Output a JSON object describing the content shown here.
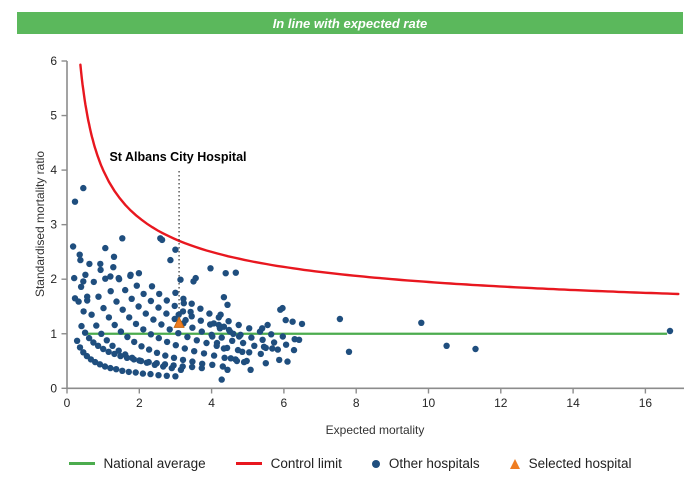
{
  "banner": {
    "text": "In line with expected rate"
  },
  "annotation": {
    "label": "St Albans City Hospital"
  },
  "chart": {
    "y_axis": {
      "label": "Standardised mortality ratio",
      "ticks": [
        0,
        1,
        2,
        3,
        4,
        5,
        6
      ]
    },
    "x_axis": {
      "label": "Expected mortality",
      "ticks": [
        0,
        2,
        4,
        6,
        8,
        10,
        12,
        14,
        16
      ]
    }
  },
  "legend": {
    "items": [
      {
        "swatch": "green-line",
        "label": "National average"
      },
      {
        "swatch": "red-line",
        "label": "Control limit"
      },
      {
        "swatch": "blue-dot",
        "label": "Other hospitals"
      },
      {
        "swatch": "orange-triangle",
        "label": "Selected hospital"
      }
    ]
  },
  "colors": {
    "banner_green": "#5bb85c",
    "average_green": "#4cac4e",
    "control_red": "#e8171f",
    "hospital_navy": "#1f4e7e",
    "selected_orange": "#ef7d22",
    "selected_orange_border": "#c9680f",
    "axis_gray": "#8c8c8c",
    "tick_text": "#262626",
    "dotted_line": "#333333"
  },
  "chart_data": {
    "type": "scatter",
    "title": "In line with expected rate",
    "xlabel": "Expected mortality",
    "ylabel": "Standardised mortality ratio",
    "xlim": [
      0,
      17.1
    ],
    "ylim": [
      0,
      6
    ],
    "x_ticks": [
      0,
      2,
      4,
      6,
      8,
      10,
      12,
      14,
      16
    ],
    "y_ticks": [
      0,
      1,
      2,
      3,
      4,
      5,
      6
    ],
    "grid": false,
    "legend_position": "bottom",
    "national_average": {
      "value": 1.0,
      "x_start": 0.45,
      "x_end": 16.6
    },
    "control_limit": {
      "formula": "1 + k/sqrt(E)",
      "k": 3.0,
      "x_start": 0.37,
      "x_end": 17.05
    },
    "selected_hospital": {
      "name": "St Albans City Hospital",
      "point": [
        3.1,
        1.2
      ]
    },
    "points": [
      [
        0.35,
        2.45
      ],
      [
        0.45,
        1.96
      ],
      [
        0.56,
        1.61
      ],
      [
        0.68,
        1.35
      ],
      [
        0.81,
        1.15
      ],
      [
        0.95,
        1.0
      ],
      [
        1.1,
        0.88
      ],
      [
        1.26,
        0.78
      ],
      [
        1.43,
        0.69
      ],
      [
        1.61,
        0.62
      ],
      [
        1.8,
        0.56
      ],
      [
        2.0,
        0.51
      ],
      [
        2.21,
        0.47
      ],
      [
        2.43,
        0.43
      ],
      [
        2.66,
        0.4
      ],
      [
        2.9,
        0.37
      ],
      [
        3.15,
        0.34
      ],
      [
        0.62,
        2.28
      ],
      [
        0.74,
        1.95
      ],
      [
        0.87,
        1.68
      ],
      [
        1.01,
        1.47
      ],
      [
        1.16,
        1.3
      ],
      [
        1.32,
        1.16
      ],
      [
        1.49,
        1.04
      ],
      [
        1.67,
        0.94
      ],
      [
        1.86,
        0.85
      ],
      [
        2.06,
        0.77
      ],
      [
        2.27,
        0.71
      ],
      [
        2.49,
        0.65
      ],
      [
        2.72,
        0.6
      ],
      [
        2.96,
        0.56
      ],
      [
        3.21,
        0.52
      ],
      [
        3.47,
        0.49
      ],
      [
        3.74,
        0.45
      ],
      [
        4.02,
        0.43
      ],
      [
        4.31,
        0.4
      ],
      [
        0.92,
        2.28
      ],
      [
        1.06,
        2.01
      ],
      [
        1.21,
        1.78
      ],
      [
        1.37,
        1.59
      ],
      [
        1.54,
        1.44
      ],
      [
        1.72,
        1.3
      ],
      [
        1.91,
        1.18
      ],
      [
        2.11,
        1.08
      ],
      [
        2.32,
        0.99
      ],
      [
        2.54,
        0.92
      ],
      [
        2.77,
        0.85
      ],
      [
        3.01,
        0.79
      ],
      [
        3.26,
        0.73
      ],
      [
        3.52,
        0.68
      ],
      [
        3.79,
        0.64
      ],
      [
        4.07,
        0.6
      ],
      [
        4.36,
        0.56
      ],
      [
        4.66,
        0.53
      ],
      [
        4.97,
        0.5
      ],
      [
        1.28,
        2.22
      ],
      [
        1.44,
        2.0
      ],
      [
        1.61,
        1.8
      ],
      [
        1.79,
        1.64
      ],
      [
        1.98,
        1.5
      ],
      [
        2.18,
        1.37
      ],
      [
        2.39,
        1.26
      ],
      [
        2.61,
        1.17
      ],
      [
        2.84,
        1.08
      ],
      [
        3.08,
        1.01
      ],
      [
        3.33,
        0.94
      ],
      [
        3.59,
        0.88
      ],
      [
        3.86,
        0.83
      ],
      [
        4.14,
        0.78
      ],
      [
        4.43,
        0.74
      ],
      [
        4.73,
        0.7
      ],
      [
        5.04,
        0.66
      ],
      [
        5.36,
        0.63
      ],
      [
        1.75,
        2.06
      ],
      [
        1.93,
        1.88
      ],
      [
        2.12,
        1.73
      ],
      [
        2.32,
        1.6
      ],
      [
        2.53,
        1.48
      ],
      [
        2.75,
        1.37
      ],
      [
        2.98,
        1.27
      ],
      [
        3.22,
        1.19
      ],
      [
        3.47,
        1.11
      ],
      [
        3.73,
        1.04
      ],
      [
        4.0,
        0.98
      ],
      [
        4.28,
        0.93
      ],
      [
        4.57,
        0.87
      ],
      [
        4.87,
        0.83
      ],
      [
        5.18,
        0.78
      ],
      [
        5.5,
        0.74
      ],
      [
        5.83,
        0.71
      ],
      [
        2.35,
        1.87
      ],
      [
        2.55,
        1.73
      ],
      [
        2.76,
        1.61
      ],
      [
        2.98,
        1.51
      ],
      [
        3.21,
        1.41
      ],
      [
        3.45,
        1.32
      ],
      [
        3.7,
        1.24
      ],
      [
        3.96,
        1.17
      ],
      [
        4.23,
        1.1
      ],
      [
        4.51,
        1.04
      ],
      [
        4.8,
        0.98
      ],
      [
        5.1,
        0.93
      ],
      [
        5.41,
        0.89
      ],
      [
        5.73,
        0.84
      ],
      [
        6.06,
        0.8
      ],
      [
        3.0,
        1.75
      ],
      [
        3.22,
        1.64
      ],
      [
        3.45,
        1.55
      ],
      [
        3.69,
        1.46
      ],
      [
        3.94,
        1.37
      ],
      [
        4.2,
        1.3
      ],
      [
        4.47,
        1.23
      ],
      [
        4.75,
        1.16
      ],
      [
        5.04,
        1.1
      ],
      [
        5.34,
        1.04
      ],
      [
        5.65,
        0.99
      ],
      [
        5.97,
        0.95
      ],
      [
        6.3,
        0.9
      ],
      [
        0.28,
        0.87
      ],
      [
        0.36,
        0.75
      ],
      [
        0.45,
        0.66
      ],
      [
        0.55,
        0.59
      ],
      [
        0.66,
        0.53
      ],
      [
        0.78,
        0.48
      ],
      [
        0.91,
        0.44
      ],
      [
        1.05,
        0.4
      ],
      [
        1.2,
        0.37
      ],
      [
        1.36,
        0.35
      ],
      [
        1.53,
        0.32
      ],
      [
        1.71,
        0.3
      ],
      [
        1.9,
        0.29
      ],
      [
        2.1,
        0.27
      ],
      [
        2.31,
        0.26
      ],
      [
        2.53,
        0.24
      ],
      [
        2.76,
        0.23
      ],
      [
        3.0,
        0.22
      ],
      [
        0.4,
        1.14
      ],
      [
        0.5,
        1.02
      ],
      [
        0.61,
        0.92
      ],
      [
        0.73,
        0.84
      ],
      [
        0.86,
        0.78
      ],
      [
        1.0,
        0.72
      ],
      [
        1.15,
        0.67
      ],
      [
        1.31,
        0.63
      ],
      [
        1.48,
        0.59
      ],
      [
        1.66,
        0.56
      ],
      [
        1.85,
        0.53
      ],
      [
        2.05,
        0.5
      ],
      [
        2.26,
        0.48
      ],
      [
        2.48,
        0.46
      ],
      [
        2.71,
        0.44
      ],
      [
        2.95,
        0.42
      ],
      [
        3.2,
        0.4
      ],
      [
        3.46,
        0.39
      ],
      [
        3.73,
        0.37
      ],
      [
        0.22,
        3.42
      ],
      [
        0.45,
        3.67
      ],
      [
        0.17,
        2.6
      ],
      [
        0.37,
        2.35
      ],
      [
        0.2,
        2.02
      ],
      [
        0.51,
        2.08
      ],
      [
        0.39,
        1.86
      ],
      [
        0.56,
        1.68
      ],
      [
        0.32,
        1.59
      ],
      [
        0.46,
        1.41
      ],
      [
        0.22,
        1.65
      ],
      [
        0.93,
        2.17
      ],
      [
        1.06,
        2.57
      ],
      [
        1.3,
        2.41
      ],
      [
        1.53,
        2.75
      ],
      [
        1.2,
        2.05
      ],
      [
        1.43,
        2.02
      ],
      [
        1.76,
        2.08
      ],
      [
        1.99,
        2.11
      ],
      [
        2.58,
        2.75
      ],
      [
        2.63,
        2.72
      ],
      [
        2.86,
        2.35
      ],
      [
        3.0,
        2.54
      ],
      [
        3.14,
        1.99
      ],
      [
        3.5,
        1.96
      ],
      [
        3.56,
        2.02
      ],
      [
        3.97,
        2.2
      ],
      [
        4.39,
        2.11
      ],
      [
        4.67,
        2.12
      ],
      [
        3.09,
        1.35
      ],
      [
        3.23,
        1.56
      ],
      [
        3.28,
        1.25
      ],
      [
        3.42,
        1.4
      ],
      [
        4.02,
        0.95
      ],
      [
        4.06,
        1.19
      ],
      [
        4.2,
        1.16
      ],
      [
        4.34,
        1.13
      ],
      [
        4.48,
        1.07
      ],
      [
        4.6,
        1.0
      ],
      [
        4.76,
        0.95
      ],
      [
        4.15,
        0.83
      ],
      [
        4.34,
        0.73
      ],
      [
        4.85,
        0.67
      ],
      [
        4.53,
        0.55
      ],
      [
        4.7,
        0.5
      ],
      [
        4.9,
        0.48
      ],
      [
        5.08,
        0.34
      ],
      [
        4.44,
        0.34
      ],
      [
        4.28,
        0.16
      ],
      [
        4.25,
        1.35
      ],
      [
        4.44,
        1.53
      ],
      [
        4.34,
        1.67
      ],
      [
        5.4,
        1.1
      ],
      [
        5.55,
        1.16
      ],
      [
        5.9,
        1.44
      ],
      [
        5.96,
        1.47
      ],
      [
        6.05,
        1.25
      ],
      [
        6.24,
        1.22
      ],
      [
        6.5,
        1.18
      ],
      [
        5.45,
        0.76
      ],
      [
        5.68,
        0.73
      ],
      [
        5.87,
        0.52
      ],
      [
        6.1,
        0.49
      ],
      [
        5.5,
        0.46
      ],
      [
        6.28,
        0.7
      ],
      [
        6.42,
        0.89
      ],
      [
        7.55,
        1.27
      ],
      [
        7.8,
        0.67
      ],
      [
        9.8,
        1.2
      ],
      [
        10.5,
        0.78
      ],
      [
        11.3,
        0.72
      ],
      [
        16.68,
        1.05
      ]
    ]
  }
}
